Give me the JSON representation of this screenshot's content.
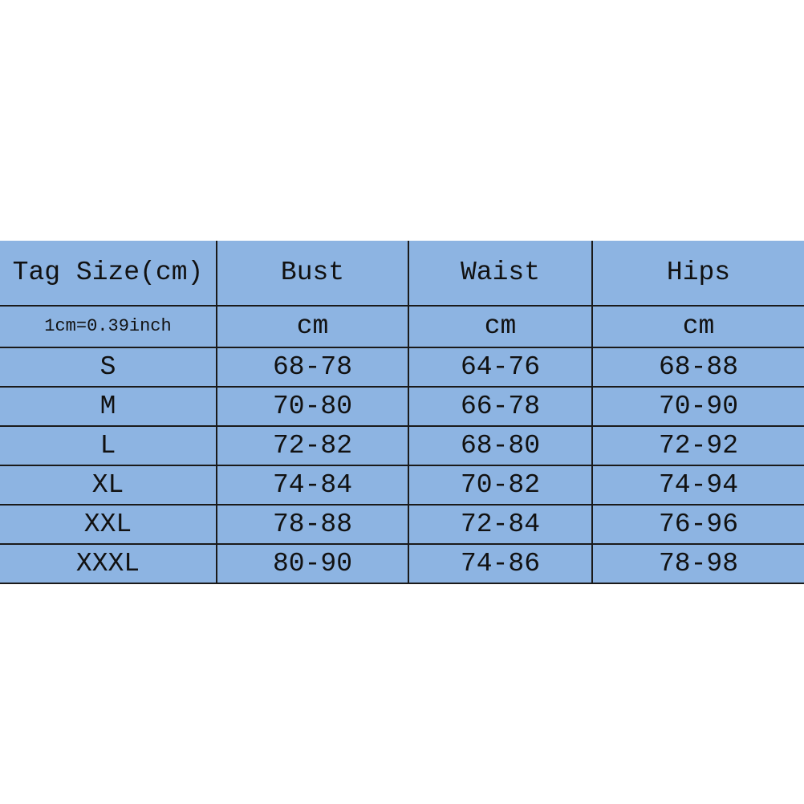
{
  "colors": {
    "cell_background": "#8db4e2",
    "border": "#1a1a1a"
  },
  "table": {
    "headers": [
      "Tag Size(cm)",
      "Bust",
      "Waist",
      "Hips"
    ],
    "units": [
      "1cm=0.39inch",
      "cm",
      "cm",
      "cm"
    ],
    "rows": [
      [
        "S",
        "68-78",
        "64-76",
        "68-88"
      ],
      [
        "M",
        "70-80",
        "66-78",
        "70-90"
      ],
      [
        "L",
        "72-82",
        "68-80",
        "72-92"
      ],
      [
        "XL",
        "74-84",
        "70-82",
        "74-94"
      ],
      [
        "XXL",
        "78-88",
        "72-84",
        "76-96"
      ],
      [
        "XXXL",
        "80-90",
        "74-86",
        "78-98"
      ]
    ]
  }
}
